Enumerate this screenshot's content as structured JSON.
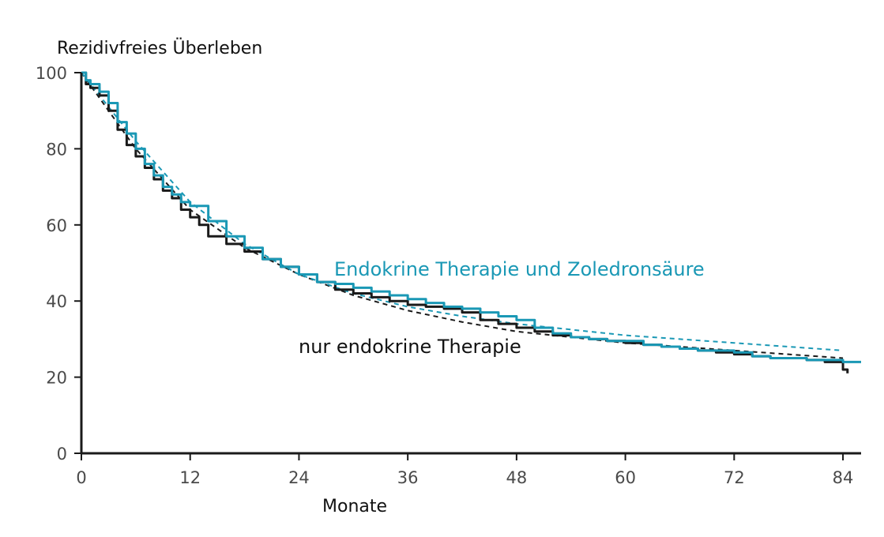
{
  "chart_data": {
    "type": "line",
    "ylabel": "Rezidivfreies Überleben",
    "xlabel": "Monate",
    "xlim": [
      0,
      86
    ],
    "ylim": [
      0,
      100
    ],
    "x_ticks": [
      "0",
      "12",
      "24",
      "36",
      "48",
      "60",
      "72",
      "84"
    ],
    "y_ticks": [
      "0",
      "20",
      "40",
      "60",
      "80",
      "100"
    ],
    "grid": false,
    "colors": {
      "black": "#1a1a1a",
      "teal": "#1a98b5",
      "axis": "#1a1a1a"
    },
    "series": [
      {
        "name": "Endokrine Therapie und Zoledronsäure",
        "color": "#1a98b5",
        "style": "step",
        "x": [
          0,
          0.5,
          1,
          2,
          3,
          4,
          5,
          6,
          7,
          8,
          9,
          10,
          11,
          12,
          14,
          16,
          18,
          20,
          22,
          24,
          26,
          28,
          30,
          32,
          34,
          36,
          38,
          40,
          42,
          44,
          46,
          48,
          50,
          52,
          54,
          56,
          58,
          60,
          62,
          64,
          66,
          68,
          70,
          72,
          74,
          76,
          78,
          80,
          82,
          84,
          86
        ],
        "y": [
          100,
          98,
          97,
          95,
          92,
          87,
          84,
          80,
          76,
          73,
          70,
          68,
          66,
          65,
          61,
          57,
          54,
          51,
          49,
          47,
          45,
          44.5,
          43.5,
          42.5,
          41.5,
          40.5,
          39.5,
          38.5,
          38,
          37,
          36,
          35,
          33,
          31.5,
          30.5,
          30,
          29.5,
          29.5,
          28.5,
          28,
          27.5,
          27,
          27,
          26.5,
          25.5,
          25,
          25,
          24.5,
          24.5,
          24,
          24
        ]
      },
      {
        "name": "nur endokrine Therapie",
        "color": "#1a1a1a",
        "style": "step",
        "x": [
          0,
          0.5,
          1,
          2,
          3,
          4,
          5,
          6,
          7,
          8,
          9,
          10,
          11,
          12,
          13,
          14,
          16,
          18,
          20,
          22,
          24,
          26,
          28,
          30,
          32,
          34,
          36,
          38,
          40,
          42,
          44,
          46,
          48,
          50,
          52,
          54,
          56,
          58,
          60,
          62,
          64,
          66,
          68,
          70,
          72,
          74,
          76,
          78,
          80,
          82,
          84,
          84.5
        ],
        "y": [
          100,
          97,
          96,
          94,
          90,
          85,
          81,
          78,
          75,
          72,
          69,
          67,
          64,
          62,
          60,
          57,
          55,
          53,
          51,
          49,
          47,
          45,
          43,
          42,
          41,
          40,
          39,
          38.5,
          38,
          37,
          35,
          34,
          33,
          32,
          31,
          30.5,
          30,
          29.5,
          29,
          28.5,
          28,
          27.5,
          27,
          26.5,
          26,
          25.5,
          25,
          25,
          24.5,
          24,
          22,
          21
        ]
      },
      {
        "name": "",
        "color": "#1a98b5",
        "style": "dashed",
        "x": [
          0,
          6,
          12,
          18,
          24,
          30,
          36,
          42,
          48,
          54,
          60,
          66,
          72,
          78,
          84
        ],
        "y": [
          100,
          82,
          66,
          55,
          47,
          42,
          38.5,
          36,
          34,
          32.5,
          31,
          30,
          29,
          28,
          27
        ]
      },
      {
        "name": "",
        "color": "#1a1a1a",
        "style": "dashed",
        "x": [
          0,
          6,
          12,
          18,
          24,
          30,
          36,
          42,
          48,
          54,
          60,
          66,
          72,
          78,
          84
        ],
        "y": [
          100,
          80,
          64,
          54,
          47,
          41.5,
          37.5,
          34.5,
          32,
          30.5,
          29,
          28,
          27,
          26,
          25
        ]
      }
    ],
    "annotations": [
      {
        "text": "Endokrine Therapie und Zoledronsäure",
        "color": "#1a98b5"
      },
      {
        "text": "nur endokrine Therapie",
        "color": "#111111"
      }
    ]
  }
}
